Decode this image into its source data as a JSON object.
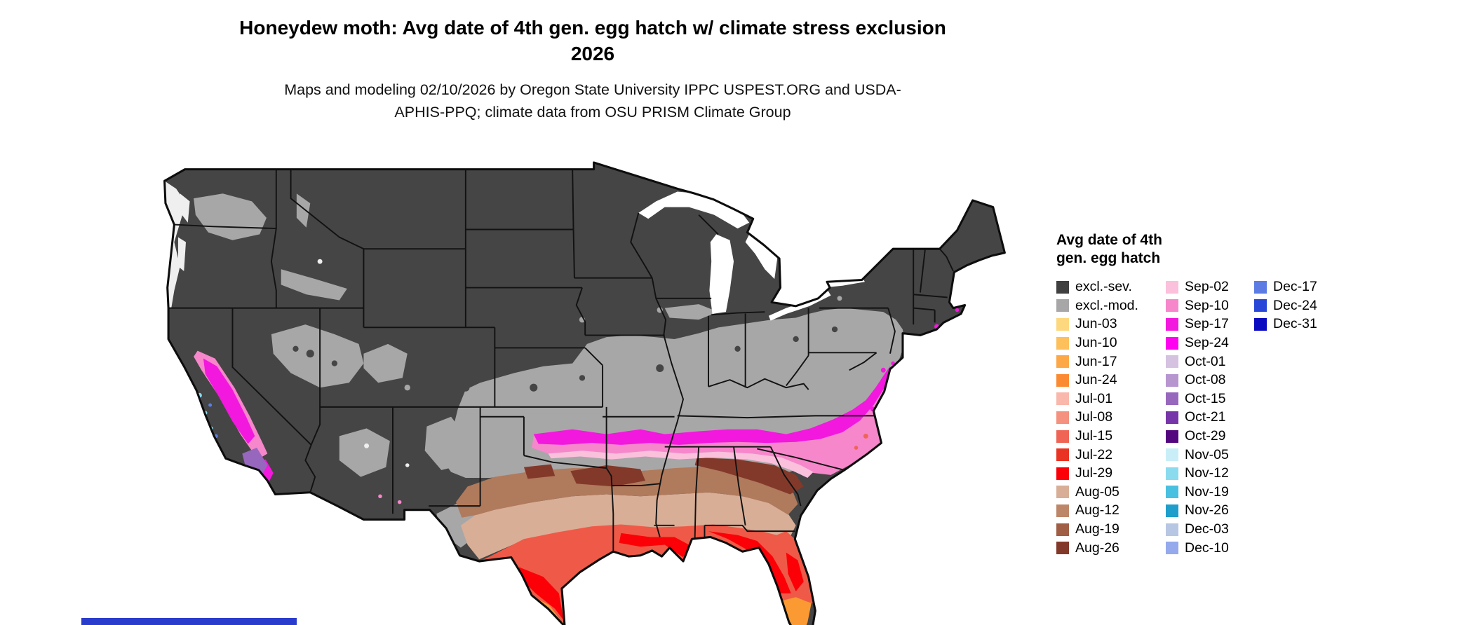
{
  "header": {
    "title": "Honeydew moth: Avg date of 4th gen. egg hatch w/ climate stress exclusion 2026",
    "subtitle": "Maps and modeling 02/10/2026 by Oregon State University IPPC USPEST.ORG and USDA-APHIS-PPQ; climate data from OSU PRISM Climate Group"
  },
  "legend": {
    "title": "Avg date of 4th gen. egg hatch",
    "columns": [
      [
        {
          "label": "excl.-sev.",
          "color": "#404040"
        },
        {
          "label": "excl.-mod.",
          "color": "#a7a7a7"
        },
        {
          "label": "Jun-03",
          "color": "#fdd87e"
        },
        {
          "label": "Jun-10",
          "color": "#fdc05a"
        },
        {
          "label": "Jun-17",
          "color": "#fda847"
        },
        {
          "label": "Jun-24",
          "color": "#fb8b32"
        },
        {
          "label": "Jul-01",
          "color": "#f9b8ab"
        },
        {
          "label": "Jul-08",
          "color": "#f4917f"
        },
        {
          "label": "Jul-15",
          "color": "#ef6455"
        },
        {
          "label": "Jul-22",
          "color": "#ea3423"
        },
        {
          "label": "Jul-29",
          "color": "#fb0007"
        },
        {
          "label": "Aug-05",
          "color": "#d8ae97"
        },
        {
          "label": "Aug-12",
          "color": "#bd8668"
        },
        {
          "label": "Aug-19",
          "color": "#a05f45"
        },
        {
          "label": "Aug-26",
          "color": "#83392a"
        }
      ],
      [
        {
          "label": "Sep-02",
          "color": "#fbc0dc"
        },
        {
          "label": "Sep-10",
          "color": "#f687cb"
        },
        {
          "label": "Sep-17",
          "color": "#f318dd"
        },
        {
          "label": "Sep-24",
          "color": "#ff00f0"
        },
        {
          "label": "Oct-01",
          "color": "#d5c1e0"
        },
        {
          "label": "Oct-08",
          "color": "#b795cf"
        },
        {
          "label": "Oct-15",
          "color": "#9767bd"
        },
        {
          "label": "Oct-21",
          "color": "#7635a8"
        },
        {
          "label": "Oct-29",
          "color": "#54067e"
        },
        {
          "label": "Nov-05",
          "color": "#c9eef8"
        },
        {
          "label": "Nov-12",
          "color": "#8adbee"
        },
        {
          "label": "Nov-19",
          "color": "#49c0e0"
        },
        {
          "label": "Nov-26",
          "color": "#1e9ecb"
        },
        {
          "label": "Dec-03",
          "color": "#b7c6e2"
        },
        {
          "label": "Dec-10",
          "color": "#94aaec"
        }
      ],
      [
        {
          "label": "Dec-17",
          "color": "#5c7ce4"
        },
        {
          "label": "Dec-24",
          "color": "#2847d8"
        },
        {
          "label": "Dec-31",
          "color": "#0a0ac0"
        }
      ]
    ]
  },
  "bottom_bar": {
    "color": "#2a3ccb"
  }
}
